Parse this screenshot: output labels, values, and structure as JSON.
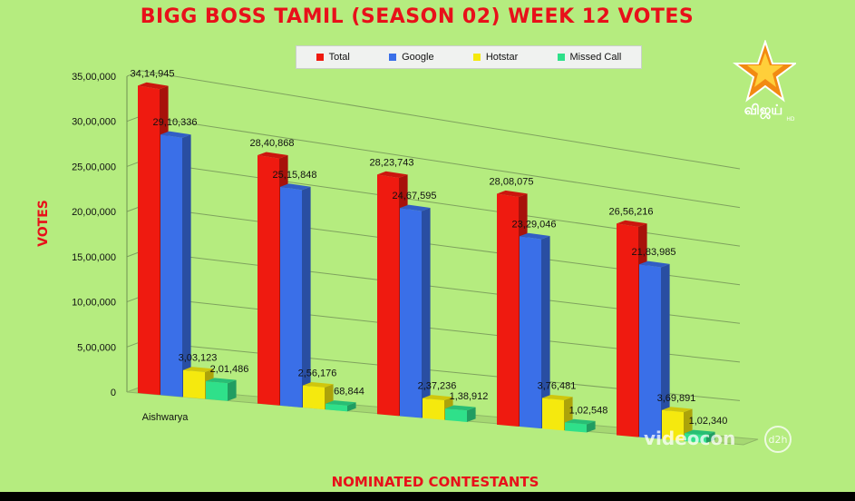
{
  "chart_data": {
    "type": "bar",
    "title": "BIGG BOSS TAMIL (SEASON 02) WEEK 12 VOTES",
    "xlabel": "NOMINATED CONTESTANTS",
    "ylabel": "VOTES",
    "ylim": [
      0,
      3500000
    ],
    "yticks": [
      "0",
      "5,00,000",
      "10,00,000",
      "15,00,000",
      "20,00,000",
      "25,00,000",
      "30,00,000",
      "35,00,000"
    ],
    "categories": [
      "Aishwarya",
      "",
      "",
      "",
      ""
    ],
    "grid": true,
    "legend_position": "top-center",
    "series": [
      {
        "name": "Total",
        "color": "#ef1a10",
        "values": [
          3414945,
          2840868,
          2823743,
          2808075,
          2656216
        ],
        "labels": [
          "34,14,945",
          "28,40,868",
          "28,23,743",
          "28,08,075",
          "26,56,216"
        ]
      },
      {
        "name": "Google",
        "color": "#3a6fe8",
        "values": [
          2910336,
          2515848,
          2467595,
          2329046,
          2183985
        ],
        "labels": [
          "29,10,336",
          "25,15,848",
          "24,67,595",
          "23,29,046",
          "21,83,985"
        ]
      },
      {
        "name": "Hotstar",
        "color": "#f5e90e",
        "values": [
          303123,
          256176,
          237236,
          376481,
          369891
        ],
        "labels": [
          "3,03,123",
          "2,56,176",
          "2,37,236",
          "3,76,481",
          "3,69,891"
        ]
      },
      {
        "name": "Missed Call",
        "color": "#2fe08a",
        "values": [
          201486,
          68844,
          138912,
          102548,
          102340
        ],
        "labels": [
          "2,01,486",
          "68,844",
          "1,38,912",
          "1,02,548",
          "1,02,340"
        ]
      }
    ]
  },
  "branding": {
    "channel_logo_text": "விஜய்",
    "channel_logo_sub": "HD",
    "sponsor_text": "videocon",
    "sponsor_sub": "d2h"
  }
}
